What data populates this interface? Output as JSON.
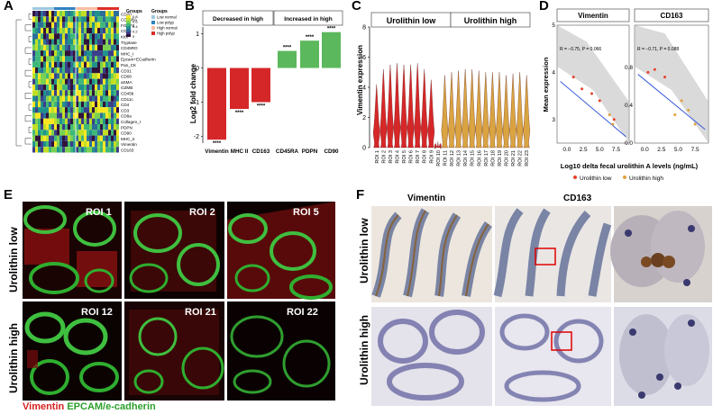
{
  "panels": {
    "A": {
      "label": "A",
      "rows": [
        "CD20",
        "CD45RA",
        "FOXP3",
        "CD14",
        "Ki67",
        "Tryptase",
        "CD45RO",
        "MHC_I",
        "Epcam+ECadherin",
        "Pan_CK",
        "CD31",
        "CD68",
        "aSMA",
        "GZMB",
        "CD45b",
        "CD11c",
        "CD4",
        "CD3",
        "CD8a",
        "Collagen_I",
        "PDPN",
        "CD90",
        "MHC_II",
        "Vimentin",
        "CD163"
      ],
      "legend_groups_title": "Groups",
      "legend_groups": [
        "Low normal",
        "Low polyp",
        "High normal",
        "High polyp"
      ],
      "legend_groups_colors": [
        "#9ecae1",
        "#3182bd",
        "#fcbba1",
        "#de2d26"
      ],
      "legend_scale_title": "Groups",
      "legend_scale_ticks": [
        "0.8",
        "0.6",
        "0.4",
        "0.2",
        "0"
      ]
    },
    "B": {
      "label": "B",
      "ylabel": "Log2 fold change",
      "group_dec": "Decreased in high",
      "group_inc": "Increased in high",
      "stars": "****"
    },
    "C": {
      "label": "C",
      "ylabel": "Vimentin expression",
      "group_low": "Urolithin low",
      "group_high": "Urolithin high"
    },
    "D": {
      "label": "D",
      "ylabel": "Mean expression",
      "xlabel": "Log10 delta fecal urolithin A levels (ng/mL)",
      "facet1": "Vimentin",
      "facet2": "CD163",
      "stat1": "R = −0.75, P = 0.066",
      "stat2": "R = −0.71, P = 0.088",
      "legend_low": "Urolithin low",
      "legend_high": "Urolithin high",
      "color_low": "#e8412c",
      "color_high": "#e0a03a"
    },
    "E": {
      "label": "E",
      "row1": "Urolithin low",
      "row2": "Urolithin high",
      "rois": [
        "ROI 1",
        "ROI 2",
        "ROI 5",
        "ROI 12",
        "ROI 21",
        "ROI 22"
      ],
      "caption_red": "Vimentin",
      "caption_green": "EPCAM/e-cadherin"
    },
    "F": {
      "label": "F",
      "col1": "Vimentin",
      "col2": "CD163",
      "row1": "Urolithin low",
      "row2": "Urolithin high"
    }
  },
  "chart_data": [
    {
      "type": "bar",
      "panel": "B",
      "categories": [
        "Vimentin",
        "MHC II",
        "CD163",
        "CD45RA",
        "PDPN",
        "CD90"
      ],
      "values": [
        -2.1,
        -1.2,
        -1.0,
        0.5,
        0.8,
        1.05
      ],
      "ylabel": "Log2 fold change",
      "ylim": [
        -2.2,
        1.2
      ],
      "yticks": [
        -2,
        -1,
        0,
        1
      ],
      "colors": [
        "#d62728",
        "#d62728",
        "#d62728",
        "#5cb85c",
        "#5cb85c",
        "#5cb85c"
      ]
    },
    {
      "type": "violin",
      "panel": "C",
      "categories": [
        "ROI 1",
        "ROI 2",
        "ROI 3",
        "ROI 4",
        "ROI 5",
        "ROI 6",
        "ROI 7",
        "ROI 8",
        "ROI 9",
        "ROI 10",
        "ROI 11",
        "ROI 12",
        "ROI 13",
        "ROI 14",
        "ROI 15",
        "ROI 16",
        "ROI 17",
        "ROI 18",
        "ROI 19",
        "ROI 20",
        "ROI 21",
        "ROI 22",
        "ROI 23"
      ],
      "groups": [
        "low",
        "low",
        "low",
        "low",
        "low",
        "low",
        "low",
        "low",
        "low",
        "low",
        "high",
        "high",
        "high",
        "high",
        "high",
        "high",
        "high",
        "high",
        "high",
        "high",
        "high",
        "high",
        "high"
      ],
      "max": [
        4.2,
        5.2,
        5.5,
        5.6,
        5.5,
        5.5,
        5.6,
        5.2,
        4.5,
        0.4,
        4.8,
        5.0,
        5.1,
        5.2,
        5.2,
        5.1,
        5.0,
        5.0,
        5.0,
        4.8,
        4.9,
        5.0,
        4.8
      ],
      "ylabel": "Vimentin expression",
      "ylim": [
        0,
        8
      ],
      "yticks": [
        0,
        2,
        4,
        6,
        8
      ]
    },
    {
      "type": "scatter",
      "panel": "D",
      "facets": [
        {
          "name": "Vimentin",
          "stat": "R = −0.75, P = 0.066",
          "ylim": [
            2.5,
            5.0
          ],
          "yticks": [
            3,
            4,
            5
          ],
          "low_points": [
            [
              1.0,
              3.9
            ],
            [
              2.3,
              3.65
            ],
            [
              3.8,
              3.55
            ],
            [
              5.0,
              3.4
            ],
            [
              7.2,
              3.0
            ]
          ],
          "high_points": [
            [
              6.5,
              3.1
            ],
            [
              7.0,
              2.9
            ]
          ]
        },
        {
          "name": "CD163",
          "stat": "R = −0.71, P = 0.088",
          "ylim": [
            0,
            1.25
          ],
          "yticks": [
            0.0,
            0.4,
            0.8
          ],
          "low_points": [
            [
              0.5,
              0.75
            ],
            [
              1.5,
              0.78
            ],
            [
              3.0,
              0.7
            ]
          ],
          "high_points": [
            [
              5.5,
              0.45
            ],
            [
              6.5,
              0.35
            ],
            [
              4.5,
              0.3
            ],
            [
              7.5,
              0.2
            ]
          ]
        }
      ],
      "xlim": [
        -1.5,
        9.5
      ],
      "xticks": [
        0.0,
        2.5,
        5.0,
        7.5
      ],
      "xlabel": "Log10 delta fecal urolithin A levels (ng/mL)",
      "ylabel": "Mean expression"
    }
  ]
}
